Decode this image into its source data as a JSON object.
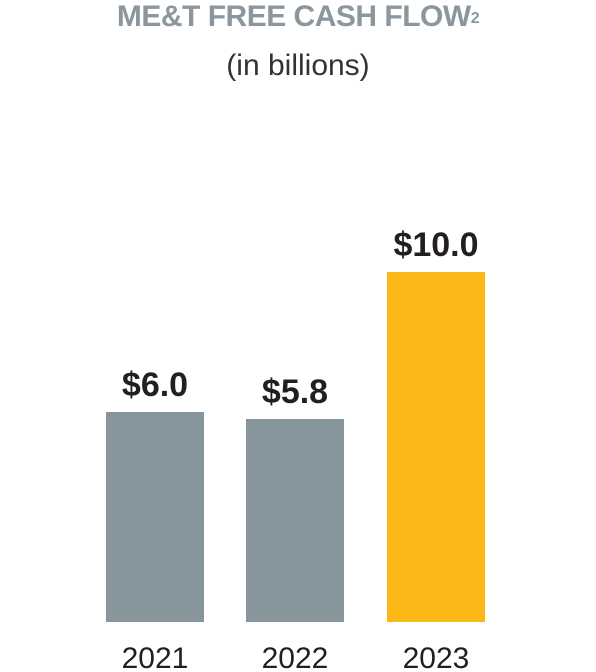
{
  "title": "ME&T FREE CASH FLOW",
  "title_superscript": "2",
  "subtitle": "(in billions)",
  "colors": {
    "title": "#8b969d",
    "bar_default": "#87959d",
    "bar_highlight": "#fbb817",
    "text": "#231f20"
  },
  "chart_data": {
    "type": "bar",
    "title": "ME&T FREE CASH FLOW",
    "subtitle": "(in billions)",
    "categories": [
      "2021",
      "2022",
      "2023"
    ],
    "values": [
      6.0,
      5.8,
      10.0
    ],
    "value_labels": [
      "$6.0",
      "$5.8",
      "$10.0"
    ],
    "highlight": [
      false,
      false,
      true
    ],
    "ylim": [
      0,
      10
    ],
    "grid": false,
    "xlabel": "",
    "ylabel": ""
  }
}
